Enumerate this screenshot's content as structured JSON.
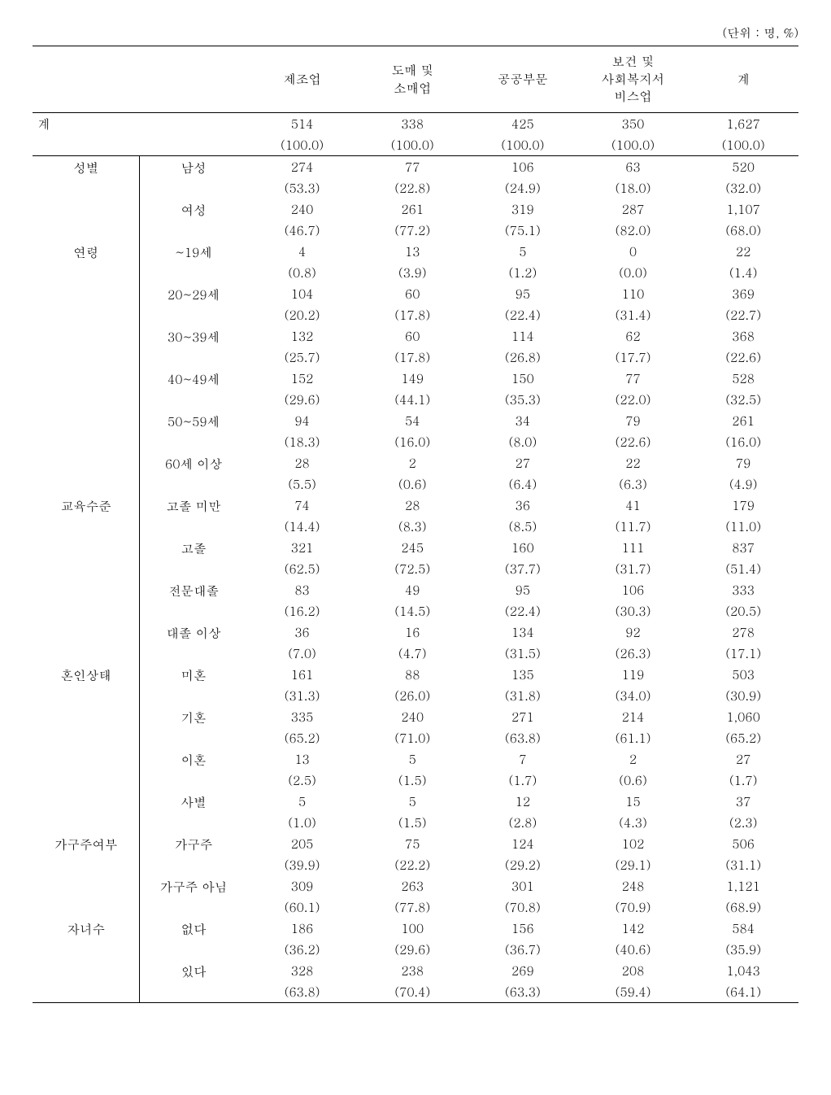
{
  "unit_label": "(단위 : 명, %)",
  "columns": [
    "제조업",
    "도매 및\n소매업",
    "공공부문",
    "보건 및\n사회복지서\n비스업",
    "계"
  ],
  "total_label": "계",
  "total_values": [
    "514",
    "338",
    "425",
    "350",
    "1,627"
  ],
  "total_pcts": [
    "(100.0)",
    "(100.0)",
    "(100.0)",
    "(100.0)",
    "(100.0)"
  ],
  "groups": [
    {
      "label": "성별",
      "rows": [
        {
          "sub": "남성",
          "vals": [
            "274",
            "77",
            "106",
            "63",
            "520"
          ],
          "pcts": [
            "(53.3)",
            "(22.8)",
            "(24.9)",
            "(18.0)",
            "(32.0)"
          ]
        },
        {
          "sub": "여성",
          "vals": [
            "240",
            "261",
            "319",
            "287",
            "1,107"
          ],
          "pcts": [
            "(46.7)",
            "(77.2)",
            "(75.1)",
            "(82.0)",
            "(68.0)"
          ]
        }
      ]
    },
    {
      "label": "연령",
      "rows": [
        {
          "sub": "~19세",
          "vals": [
            "4",
            "13",
            "5",
            "0",
            "22"
          ],
          "pcts": [
            "(0.8)",
            "(3.9)",
            "(1.2)",
            "(0.0)",
            "(1.4)"
          ]
        },
        {
          "sub": "20~29세",
          "vals": [
            "104",
            "60",
            "95",
            "110",
            "369"
          ],
          "pcts": [
            "(20.2)",
            "(17.8)",
            "(22.4)",
            "(31.4)",
            "(22.7)"
          ]
        },
        {
          "sub": "30~39세",
          "vals": [
            "132",
            "60",
            "114",
            "62",
            "368"
          ],
          "pcts": [
            "(25.7)",
            "(17.8)",
            "(26.8)",
            "(17.7)",
            "(22.6)"
          ]
        },
        {
          "sub": "40~49세",
          "vals": [
            "152",
            "149",
            "150",
            "77",
            "528"
          ],
          "pcts": [
            "(29.6)",
            "(44.1)",
            "(35.3)",
            "(22.0)",
            "(32.5)"
          ]
        },
        {
          "sub": "50~59세",
          "vals": [
            "94",
            "54",
            "34",
            "79",
            "261"
          ],
          "pcts": [
            "(18.3)",
            "(16.0)",
            "(8.0)",
            "(22.6)",
            "(16.0)"
          ]
        },
        {
          "sub": "60세 이상",
          "vals": [
            "28",
            "2",
            "27",
            "22",
            "79"
          ],
          "pcts": [
            "(5.5)",
            "(0.6)",
            "(6.4)",
            "(6.3)",
            "(4.9)"
          ]
        }
      ]
    },
    {
      "label": "교육수준",
      "rows": [
        {
          "sub": "고졸 미만",
          "vals": [
            "74",
            "28",
            "36",
            "41",
            "179"
          ],
          "pcts": [
            "(14.4)",
            "(8.3)",
            "(8.5)",
            "(11.7)",
            "(11.0)"
          ]
        },
        {
          "sub": "고졸",
          "vals": [
            "321",
            "245",
            "160",
            "111",
            "837"
          ],
          "pcts": [
            "(62.5)",
            "(72.5)",
            "(37.7)",
            "(31.7)",
            "(51.4)"
          ]
        },
        {
          "sub": "전문대졸",
          "vals": [
            "83",
            "49",
            "95",
            "106",
            "333"
          ],
          "pcts": [
            "(16.2)",
            "(14.5)",
            "(22.4)",
            "(30.3)",
            "(20.5)"
          ]
        },
        {
          "sub": "대졸 이상",
          "vals": [
            "36",
            "16",
            "134",
            "92",
            "278"
          ],
          "pcts": [
            "(7.0)",
            "(4.7)",
            "(31.5)",
            "(26.3)",
            "(17.1)"
          ]
        }
      ]
    },
    {
      "label": "혼인상태",
      "rows": [
        {
          "sub": "미혼",
          "vals": [
            "161",
            "88",
            "135",
            "119",
            "503"
          ],
          "pcts": [
            "(31.3)",
            "(26.0)",
            "(31.8)",
            "(34.0)",
            "(30.9)"
          ]
        },
        {
          "sub": "기혼",
          "vals": [
            "335",
            "240",
            "271",
            "214",
            "1,060"
          ],
          "pcts": [
            "(65.2)",
            "(71.0)",
            "(63.8)",
            "(61.1)",
            "(65.2)"
          ]
        },
        {
          "sub": "이혼",
          "vals": [
            "13",
            "5",
            "7",
            "2",
            "27"
          ],
          "pcts": [
            "(2.5)",
            "(1.5)",
            "(1.7)",
            "(0.6)",
            "(1.7)"
          ]
        },
        {
          "sub": "사별",
          "vals": [
            "5",
            "5",
            "12",
            "15",
            "37"
          ],
          "pcts": [
            "(1.0)",
            "(1.5)",
            "(2.8)",
            "(4.3)",
            "(2.3)"
          ]
        }
      ]
    },
    {
      "label": "가구주여부",
      "rows": [
        {
          "sub": "가구주",
          "vals": [
            "205",
            "75",
            "124",
            "102",
            "506"
          ],
          "pcts": [
            "(39.9)",
            "(22.2)",
            "(29.2)",
            "(29.1)",
            "(31.1)"
          ]
        },
        {
          "sub": "가구주 아님",
          "vals": [
            "309",
            "263",
            "301",
            "248",
            "1,121"
          ],
          "pcts": [
            "(60.1)",
            "(77.8)",
            "(70.8)",
            "(70.9)",
            "(68.9)"
          ]
        }
      ]
    },
    {
      "label": "자녀수",
      "rows": [
        {
          "sub": "없다",
          "vals": [
            "186",
            "100",
            "156",
            "142",
            "584"
          ],
          "pcts": [
            "(36.2)",
            "(29.6)",
            "(36.7)",
            "(40.6)",
            "(35.9)"
          ]
        },
        {
          "sub": "있다",
          "vals": [
            "328",
            "238",
            "269",
            "208",
            "1,043"
          ],
          "pcts": [
            "(63.8)",
            "(70.4)",
            "(63.3)",
            "(59.4)",
            "(64.1)"
          ]
        }
      ]
    }
  ]
}
